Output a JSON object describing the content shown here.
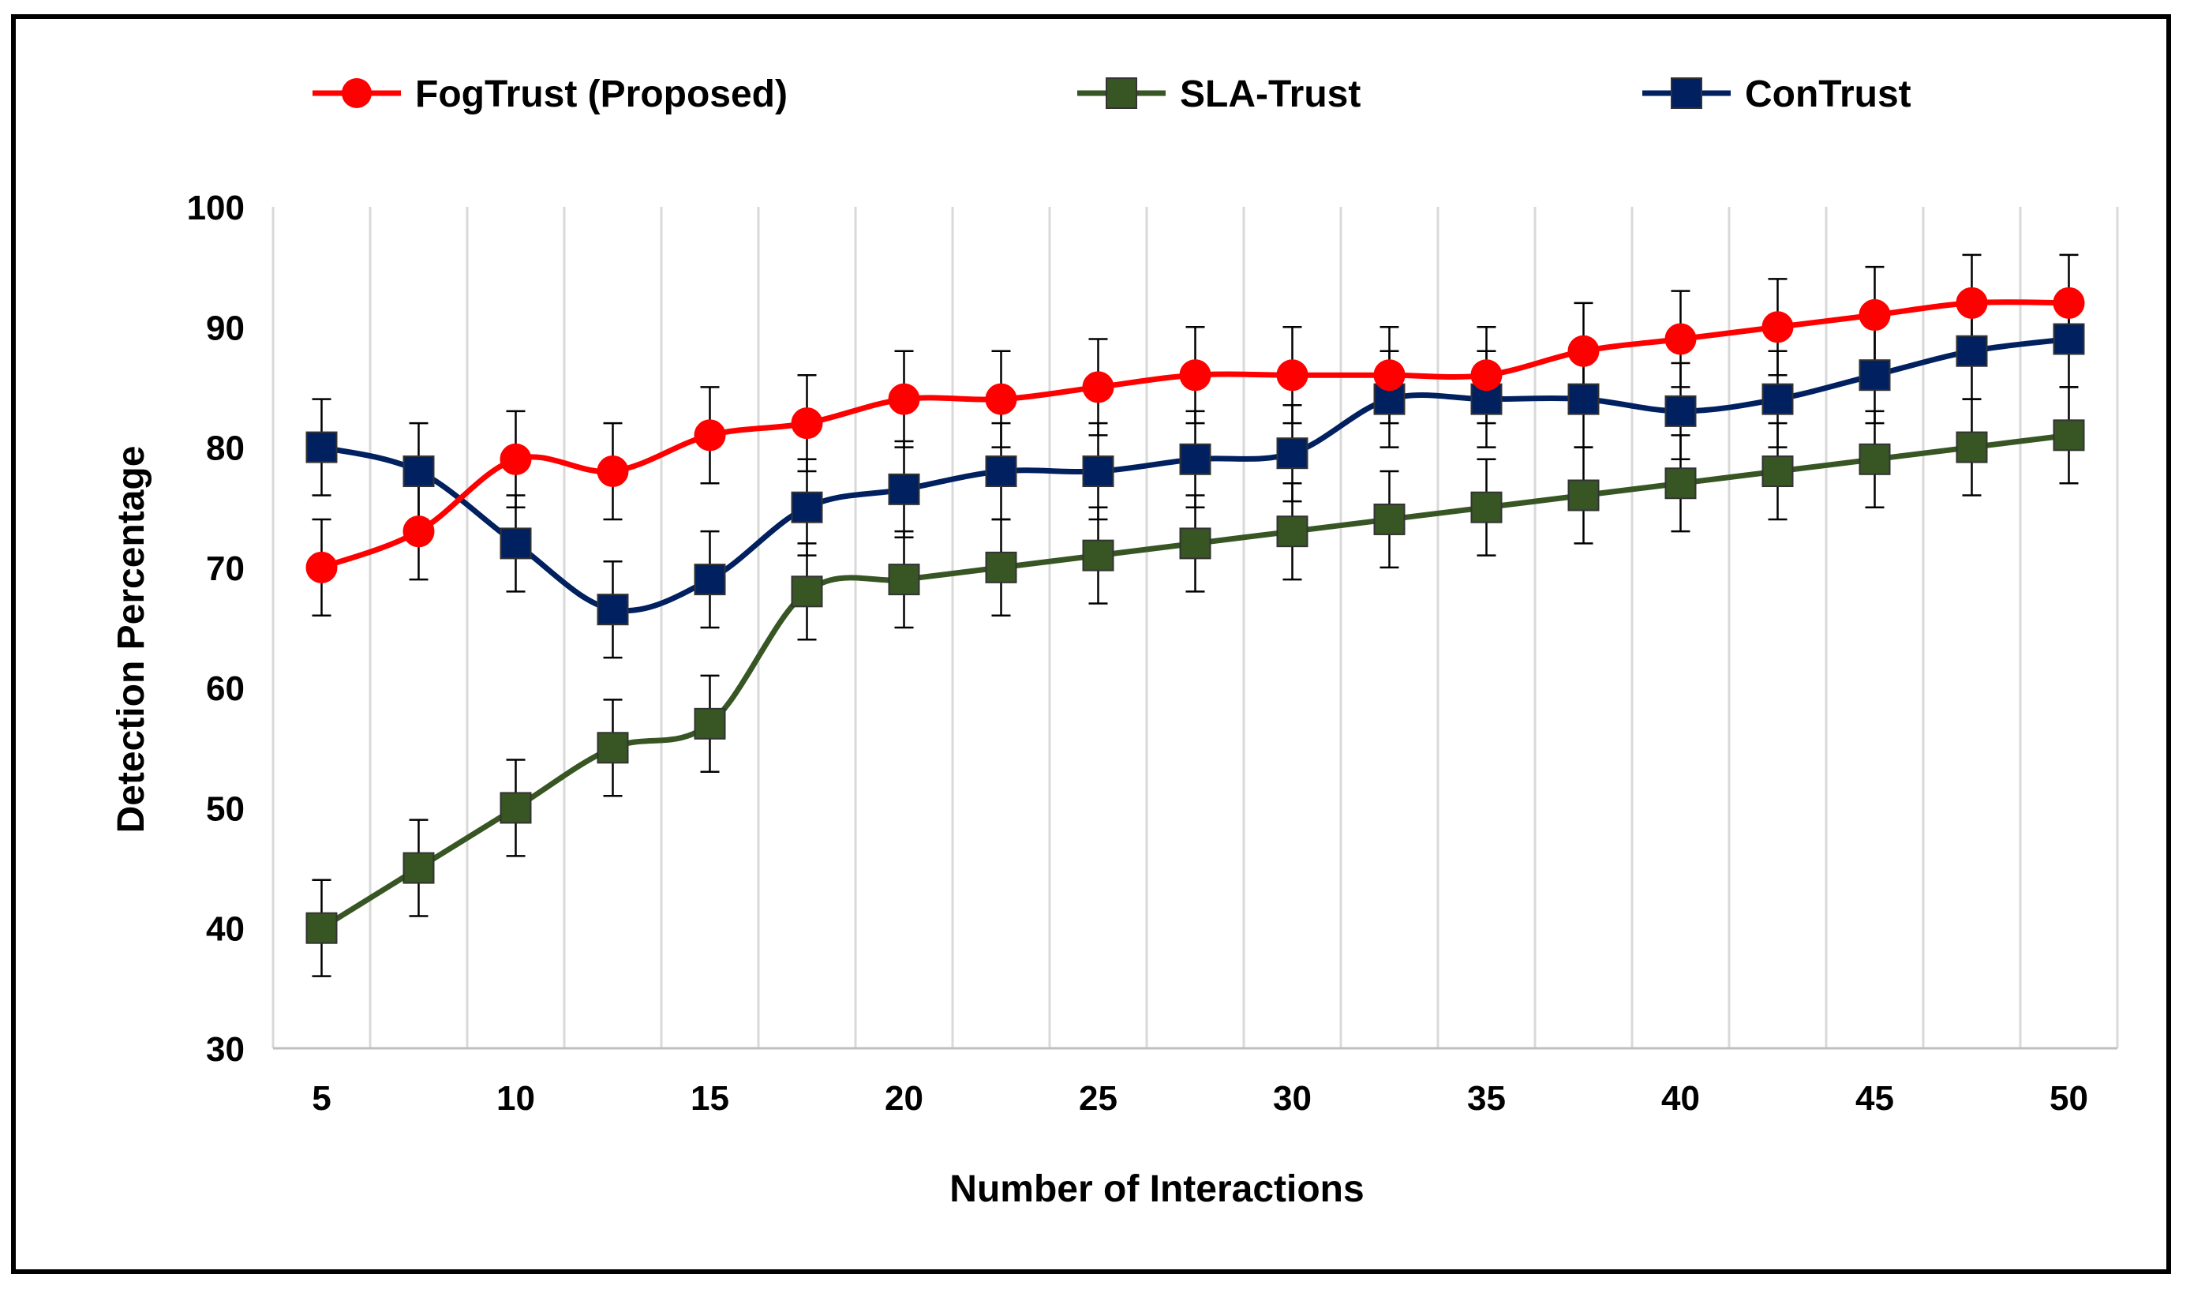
{
  "chart_data": {
    "type": "line",
    "title": "",
    "xlabel": "Number of Interactions",
    "ylabel": "Detection Percentage",
    "x": [
      5,
      7.5,
      10,
      12.5,
      15,
      17.5,
      20,
      22.5,
      25,
      27.5,
      30,
      32.5,
      35,
      37.5,
      40,
      42.5,
      45,
      47.5,
      50
    ],
    "xticks": [
      5,
      10,
      15,
      20,
      25,
      30,
      35,
      40,
      45,
      50
    ],
    "xlim": [
      3.75,
      51.25
    ],
    "yticks": [
      30,
      40,
      50,
      60,
      70,
      80,
      90,
      100
    ],
    "ylim": [
      30,
      100
    ],
    "grid": "vertical",
    "legend_position": "top",
    "error_bar": 4,
    "series": [
      {
        "name": "FogTrust (Proposed)",
        "color": "#ff0000",
        "marker": "circle",
        "values": [
          70,
          73,
          79,
          78,
          81,
          82,
          84,
          84,
          85,
          86,
          86,
          86,
          86,
          88,
          89,
          90,
          91,
          92,
          92
        ]
      },
      {
        "name": "SLA-Trust",
        "color": "#375623",
        "marker": "square",
        "values": [
          40,
          45,
          50,
          55,
          57,
          68,
          69,
          70,
          71,
          72,
          73,
          74,
          75,
          76,
          77,
          78,
          79,
          80,
          81
        ]
      },
      {
        "name": "ConTrust",
        "color": "#002060",
        "marker": "square",
        "values": [
          80,
          78,
          72,
          66.5,
          69,
          75,
          76.5,
          78,
          78,
          79,
          79.5,
          84,
          84,
          84,
          83,
          84,
          86,
          88,
          89
        ]
      }
    ]
  }
}
